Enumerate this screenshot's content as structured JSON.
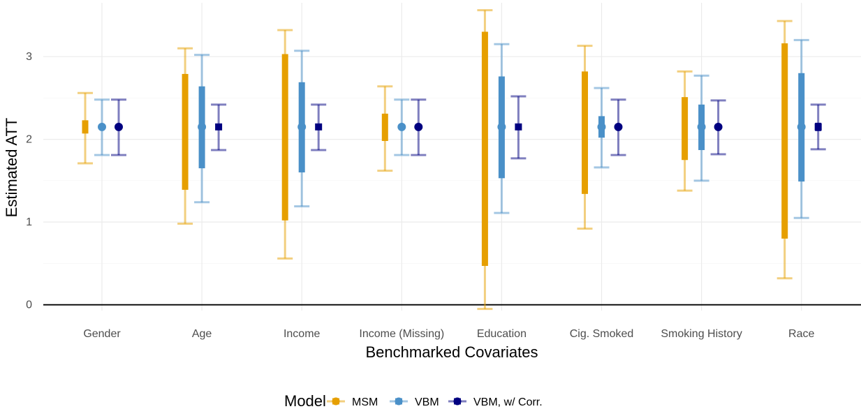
{
  "chart_data": {
    "type": "errorbar",
    "xlabel": "Benchmarked Covariates",
    "ylabel": "Estimated ATT",
    "ylim": [
      -0.07,
      3.65
    ],
    "yticks": [
      0,
      1,
      2,
      3
    ],
    "grid": true,
    "categories": [
      "Gender",
      "Age",
      "Income",
      "Income (Missing)",
      "Education",
      "Cig. Smoked",
      "Smoking History",
      "Race"
    ],
    "legend": {
      "title": "Model",
      "placement": "bottom"
    },
    "series": [
      {
        "name": "MSM",
        "color": "#E69F00",
        "marker": "none",
        "point": [
          2.15,
          2.15,
          2.15,
          2.15,
          2.15,
          2.15,
          2.15,
          2.15
        ],
        "inner_lower": [
          2.07,
          1.39,
          1.02,
          1.98,
          0.47,
          1.34,
          1.75,
          0.8
        ],
        "inner_upper": [
          2.23,
          2.79,
          3.03,
          2.31,
          3.3,
          2.82,
          2.51,
          3.16
        ],
        "outer_lower": [
          1.71,
          0.98,
          0.56,
          1.62,
          -0.05,
          0.92,
          1.38,
          0.32
        ],
        "outer_upper": [
          2.56,
          3.1,
          3.32,
          2.64,
          3.56,
          3.13,
          2.82,
          3.43
        ]
      },
      {
        "name": "VBM",
        "color": "#4A90C8",
        "marker": "circle",
        "point": [
          2.15,
          2.15,
          2.15,
          2.15,
          2.15,
          2.15,
          2.15,
          2.15
        ],
        "inner_lower": [
          2.15,
          1.65,
          1.6,
          2.15,
          1.53,
          2.02,
          1.87,
          1.49
        ],
        "inner_upper": [
          2.15,
          2.64,
          2.69,
          2.15,
          2.76,
          2.28,
          2.42,
          2.8
        ],
        "outer_lower": [
          1.81,
          1.24,
          1.19,
          1.81,
          1.11,
          1.66,
          1.5,
          1.05
        ],
        "outer_upper": [
          2.48,
          3.02,
          3.07,
          2.48,
          3.15,
          2.62,
          2.77,
          3.2
        ]
      },
      {
        "name": "VBM, w/ Corr.",
        "color": "#000080",
        "marker": [
          "circle",
          "square",
          "square",
          "circle",
          "square",
          "circle",
          "circle",
          "square"
        ],
        "point": [
          2.15,
          2.15,
          2.15,
          2.15,
          2.15,
          2.15,
          2.15,
          2.15
        ],
        "inner_lower": [
          2.15,
          2.15,
          2.15,
          2.15,
          2.15,
          2.15,
          2.15,
          2.1
        ],
        "inner_upper": [
          2.15,
          2.15,
          2.15,
          2.15,
          2.15,
          2.15,
          2.15,
          2.2
        ],
        "outer_lower": [
          1.81,
          1.87,
          1.87,
          1.81,
          1.77,
          1.81,
          1.82,
          1.88
        ],
        "outer_upper": [
          2.48,
          2.42,
          2.42,
          2.48,
          2.52,
          2.48,
          2.47,
          2.42
        ]
      }
    ]
  }
}
